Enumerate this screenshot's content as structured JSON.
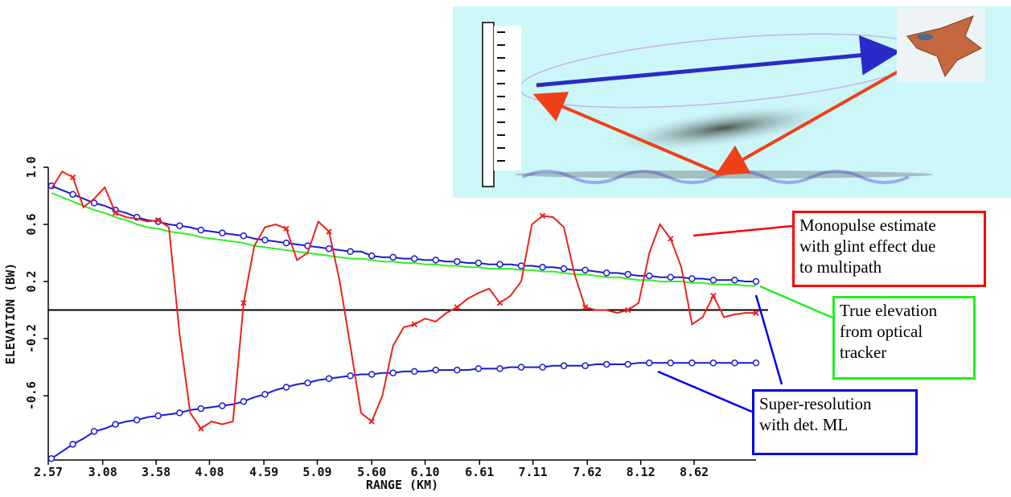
{
  "chart_data": {
    "type": "line",
    "x_label": "RANGE (KM)",
    "y_label": "ELEVATION (BW)",
    "xlim": [
      2.57,
      9.2
    ],
    "ylim": [
      -1.05,
      1.0
    ],
    "xticks": [
      2.57,
      3.08,
      3.58,
      4.08,
      4.59,
      5.09,
      {
        "value": 5.6,
        "label": "5.60"
      },
      {
        "value": 6.1,
        "label": "6.10"
      },
      6.61,
      7.11,
      7.62,
      8.12,
      8.62
    ],
    "yticks": [
      {
        "value": 1,
        "label": "1.0"
      },
      0.6,
      0.2,
      -0.2,
      -0.6
    ],
    "hline": 0,
    "x": [
      2.6,
      2.7,
      2.8,
      2.9,
      3.0,
      3.1,
      3.2,
      3.3,
      3.4,
      3.5,
      3.6,
      3.7,
      3.8,
      3.9,
      4.0,
      4.1,
      4.2,
      4.3,
      4.4,
      4.5,
      4.6,
      4.7,
      4.8,
      4.9,
      5.0,
      5.1,
      5.2,
      5.3,
      5.4,
      5.5,
      5.6,
      5.7,
      5.8,
      5.9,
      6.0,
      6.1,
      6.2,
      6.3,
      6.4,
      6.5,
      6.6,
      6.7,
      6.8,
      6.9,
      7.0,
      7.1,
      7.2,
      7.3,
      7.4,
      7.5,
      7.6,
      7.7,
      7.8,
      7.9,
      8.0,
      8.1,
      8.2,
      8.3,
      8.4,
      8.5,
      8.6,
      8.7,
      8.8,
      8.9,
      9.0,
      9.1,
      9.2
    ],
    "series": [
      {
        "color": "#33ee22",
        "marker": "none",
        "values": [
          0.82,
          0.79,
          0.76,
          0.73,
          0.7,
          0.68,
          0.65,
          0.63,
          0.6,
          0.58,
          0.57,
          0.55,
          0.54,
          0.53,
          0.51,
          0.5,
          0.49,
          0.48,
          0.47,
          0.45,
          0.44,
          0.43,
          0.42,
          0.41,
          0.4,
          0.39,
          0.38,
          0.37,
          0.36,
          0.36,
          0.35,
          0.34,
          0.34,
          0.33,
          0.33,
          0.32,
          0.32,
          0.31,
          0.31,
          0.3,
          0.3,
          0.29,
          0.29,
          0.29,
          0.28,
          0.28,
          0.27,
          0.27,
          0.26,
          0.25,
          0.25,
          0.24,
          0.23,
          0.23,
          0.22,
          0.21,
          0.21,
          0.2,
          0.2,
          0.2,
          0.19,
          0.19,
          0.18,
          0.18,
          0.18,
          0.17,
          0.17
        ]
      },
      {
        "color": "#1a1ad6",
        "marker": "o",
        "values": [
          0.87,
          0.84,
          0.81,
          0.78,
          0.75,
          0.73,
          0.7,
          0.68,
          0.65,
          0.63,
          0.62,
          0.6,
          0.59,
          0.58,
          0.56,
          0.55,
          0.54,
          0.53,
          0.52,
          0.5,
          0.49,
          0.48,
          0.47,
          0.46,
          0.45,
          0.44,
          0.43,
          0.42,
          0.41,
          0.41,
          0.38,
          0.37,
          0.37,
          0.36,
          0.36,
          0.35,
          0.35,
          0.34,
          0.34,
          0.33,
          0.33,
          0.32,
          0.32,
          0.32,
          0.31,
          0.31,
          0.3,
          0.3,
          0.29,
          0.28,
          0.28,
          0.27,
          0.26,
          0.26,
          0.25,
          0.24,
          0.24,
          0.23,
          0.23,
          0.23,
          0.22,
          0.22,
          0.21,
          0.21,
          0.21,
          0.2,
          0.2
        ]
      },
      {
        "color": "#1a1ad6",
        "marker": "o",
        "values": [
          -1.04,
          -0.99,
          -0.94,
          -0.9,
          -0.85,
          -0.83,
          -0.8,
          -0.78,
          -0.77,
          -0.75,
          -0.74,
          -0.73,
          -0.72,
          -0.7,
          -0.69,
          -0.68,
          -0.67,
          -0.66,
          -0.64,
          -0.61,
          -0.59,
          -0.56,
          -0.54,
          -0.52,
          -0.51,
          -0.49,
          -0.48,
          -0.47,
          -0.46,
          -0.45,
          -0.45,
          -0.44,
          -0.44,
          -0.43,
          -0.43,
          -0.43,
          -0.42,
          -0.42,
          -0.42,
          -0.42,
          -0.41,
          -0.41,
          -0.41,
          -0.4,
          -0.4,
          -0.4,
          -0.4,
          -0.39,
          -0.39,
          -0.39,
          -0.39,
          -0.38,
          -0.38,
          -0.38,
          -0.38,
          -0.37,
          -0.37,
          -0.37,
          -0.37,
          -0.37,
          -0.37,
          -0.37,
          -0.37,
          -0.37,
          -0.37,
          -0.37,
          -0.37
        ]
      },
      {
        "color": "#e8241c",
        "marker": "x",
        "values": [
          0.85,
          0.97,
          0.93,
          0.72,
          0.78,
          0.86,
          0.68,
          0.65,
          0.64,
          0.62,
          0.63,
          0.58,
          -0.17,
          -0.72,
          -0.83,
          -0.78,
          -0.8,
          -0.78,
          0.05,
          0.45,
          0.58,
          0.6,
          0.57,
          0.35,
          0.4,
          0.62,
          0.55,
          0.2,
          -0.25,
          -0.72,
          -0.78,
          -0.6,
          -0.25,
          -0.12,
          -0.1,
          -0.06,
          -0.08,
          -0.02,
          0.02,
          0.08,
          0.12,
          0.15,
          0.05,
          0.1,
          0.2,
          0.6,
          0.66,
          0.65,
          0.58,
          0.25,
          0.02,
          0.0,
          0.0,
          -0.02,
          0.0,
          0.05,
          0.4,
          0.6,
          0.5,
          0.3,
          -0.1,
          -0.05,
          0.1,
          -0.05,
          -0.03,
          -0.02,
          -0.02
        ]
      }
    ],
    "annotations": [
      {
        "color": "#ff0000",
        "lines": [
          "Monopulse estimate",
          "with glint effect due",
          "to multipath"
        ]
      },
      {
        "color": "#22ee22",
        "lines": [
          "True elevation",
          "from optical",
          "tracker"
        ]
      },
      {
        "color": "#0000ee",
        "lines": [
          "Super-resolution",
          "with det. ML"
        ]
      }
    ]
  }
}
